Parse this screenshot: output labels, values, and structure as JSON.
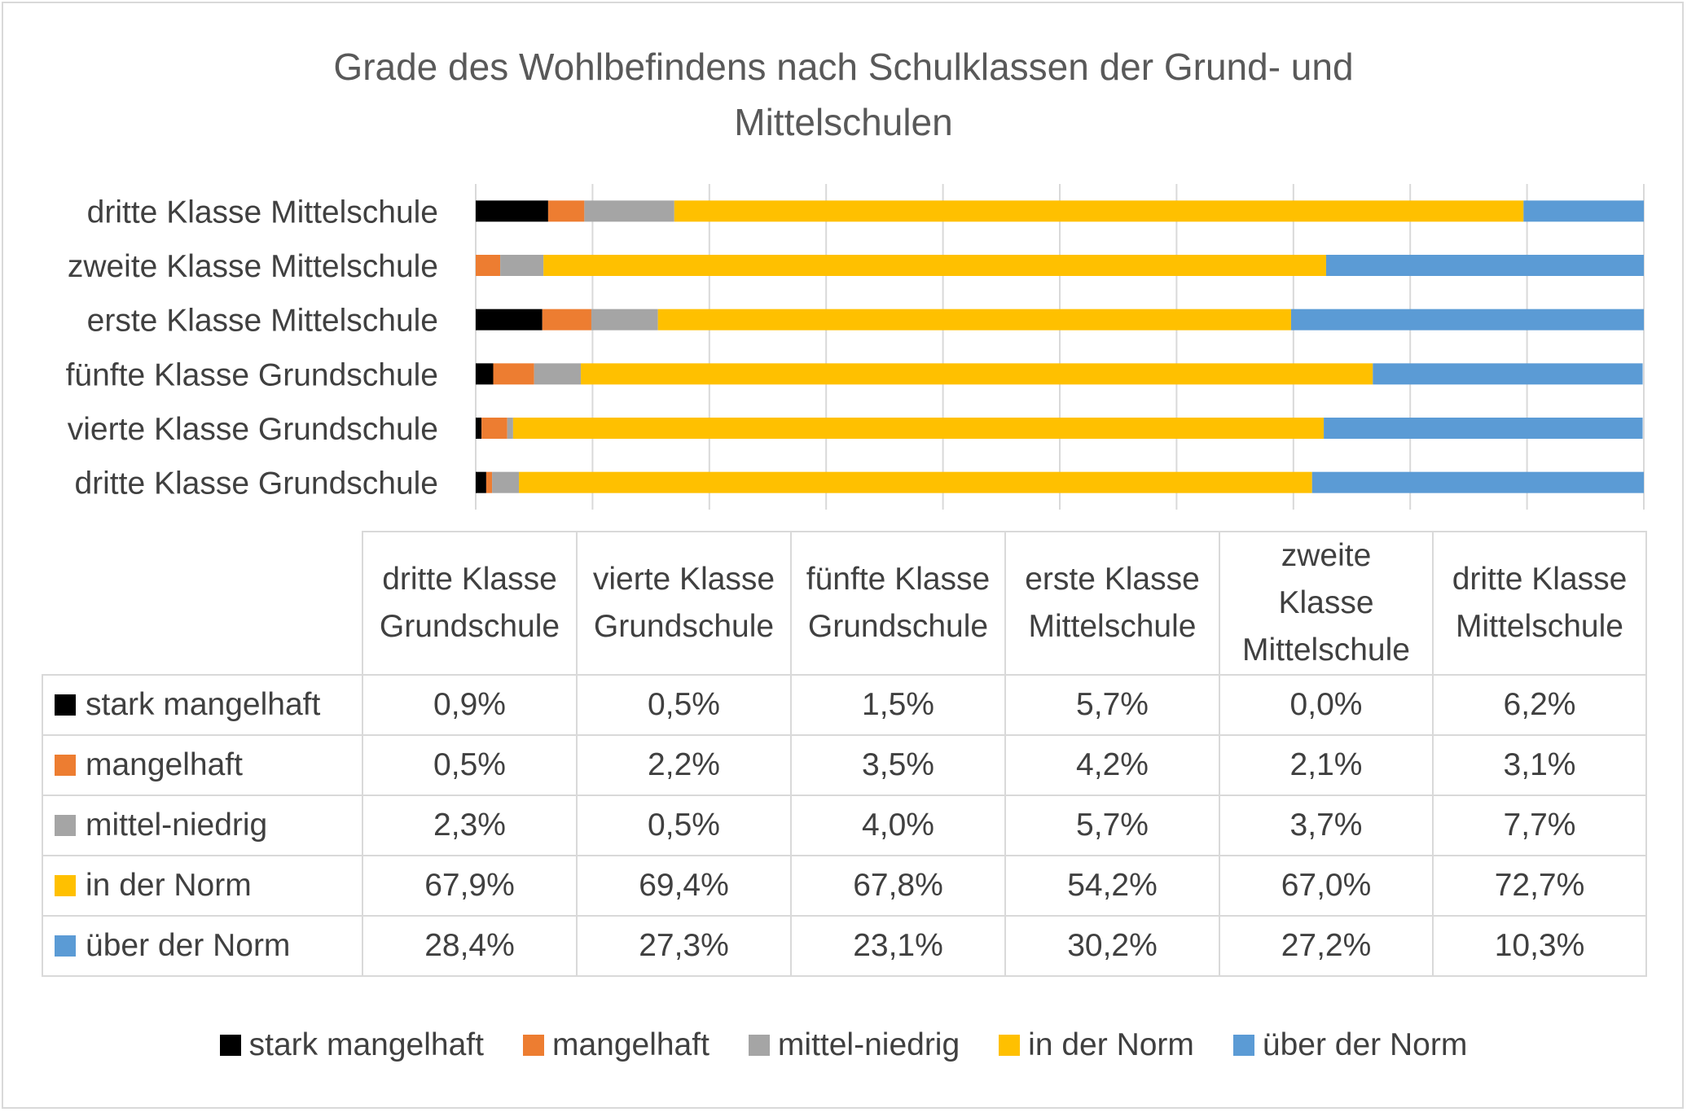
{
  "chart_data": {
    "type": "bar",
    "orientation": "horizontal",
    "stacked": true,
    "percent_stacked": true,
    "title": "Grade des Wohlbefindens  nach Schulklassen der Grund- und Mittelschulen",
    "title_lines": [
      "Grade des Wohlbefindens  nach Schulklassen der Grund- und",
      "Mittelschulen"
    ],
    "categories": [
      "dritte Klasse Grundschule",
      "vierte Klasse Grundschule",
      "fünfte Klasse Grundschule",
      "erste Klasse Mittelschule",
      "zweite Klasse Mittelschule",
      "dritte Klasse Mittelschule"
    ],
    "table_headers": [
      [
        "dritte Klasse",
        "Grundschule"
      ],
      [
        "vierte Klasse",
        "Grundschule"
      ],
      [
        "fünfte Klasse",
        "Grundschule"
      ],
      [
        "erste Klasse",
        "Mittelschule"
      ],
      [
        "zweite",
        "Klasse",
        "Mittelschule"
      ],
      [
        "dritte Klasse",
        "Mittelschule"
      ]
    ],
    "series": [
      {
        "name": "stark mangelhaft",
        "color": "#000000",
        "values": [
          0.9,
          0.5,
          1.5,
          5.7,
          0.0,
          6.2
        ],
        "labels": [
          "0,9%",
          "0,5%",
          "1,5%",
          "5,7%",
          "0,0%",
          "6,2%"
        ]
      },
      {
        "name": "mangelhaft",
        "color": "#ed7d31",
        "values": [
          0.5,
          2.2,
          3.5,
          4.2,
          2.1,
          3.1
        ],
        "labels": [
          "0,5%",
          "2,2%",
          "3,5%",
          "4,2%",
          "2,1%",
          "3,1%"
        ]
      },
      {
        "name": "mittel-niedrig",
        "color": "#a5a5a5",
        "values": [
          2.3,
          0.5,
          4.0,
          5.7,
          3.7,
          7.7
        ],
        "labels": [
          "2,3%",
          "0,5%",
          "4,0%",
          "5,7%",
          "3,7%",
          "7,7%"
        ]
      },
      {
        "name": "in der Norm",
        "color": "#ffc000",
        "values": [
          67.9,
          69.4,
          67.8,
          54.2,
          67.0,
          72.7
        ],
        "labels": [
          "67,9%",
          "69,4%",
          "67,8%",
          "54,2%",
          "67,0%",
          "72,7%"
        ]
      },
      {
        "name": "über der Norm",
        "color": "#5b9bd5",
        "values": [
          28.4,
          27.3,
          23.1,
          30.2,
          27.2,
          10.3
        ],
        "labels": [
          "28,4%",
          "27,3%",
          "23,1%",
          "30,2%",
          "27,2%",
          "10,3%"
        ]
      }
    ],
    "xlim": [
      0,
      100
    ],
    "grid": true,
    "legend": "bottom",
    "data_table": true
  }
}
